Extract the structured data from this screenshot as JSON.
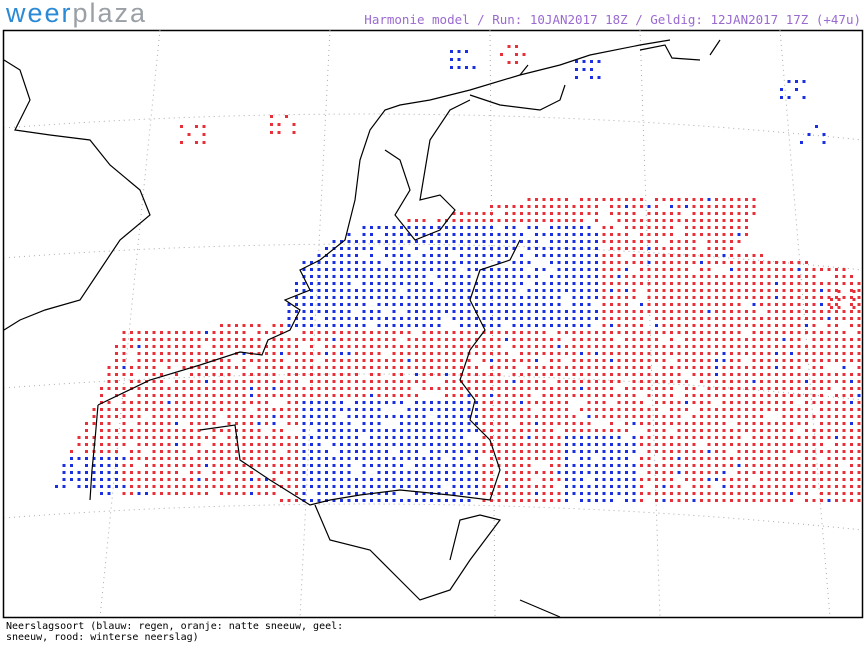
{
  "header": {
    "logo_part1": "weer",
    "logo_part2": "plaza",
    "run_info": "Harmonie model / Run: 10JAN2017 18Z / Geldig: 12JAN2017 17Z (+47u)"
  },
  "caption": [
    "Neerslagsoort (blauw: regen, oranje: natte sneeuw, geel:",
    "sneeuw, rood: winterse neerslag)"
  ]
}
